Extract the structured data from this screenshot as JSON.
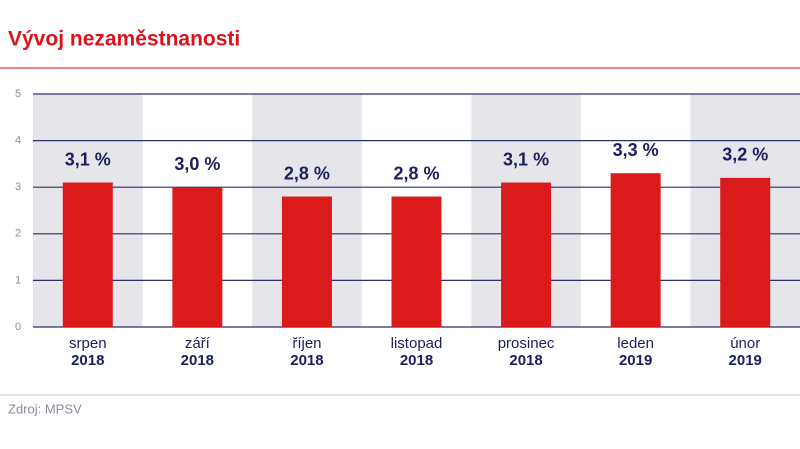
{
  "chart_data": {
    "type": "bar",
    "title": "Vývoj nezaměstnanosti",
    "categories": [
      [
        "srpen",
        "2018"
      ],
      [
        "září",
        "2018"
      ],
      [
        "říjen",
        "2018"
      ],
      [
        "listopad",
        "2018"
      ],
      [
        "prosinec",
        "2018"
      ],
      [
        "leden",
        "2019"
      ],
      [
        "únor",
        "2019"
      ]
    ],
    "values": [
      3.1,
      3.0,
      2.8,
      2.8,
      3.1,
      3.3,
      3.2
    ],
    "value_labels": [
      "3,1 %",
      "3,0 %",
      "2,8 %",
      "2,8 %",
      "3,1 %",
      "3,3 %",
      "3,2 %"
    ],
    "color": "#da1b1b",
    "ylim": [
      0,
      5
    ],
    "yticks": [
      0,
      1,
      2,
      3,
      4,
      5
    ],
    "grid": true,
    "source": "Zdroj: MPSV"
  }
}
